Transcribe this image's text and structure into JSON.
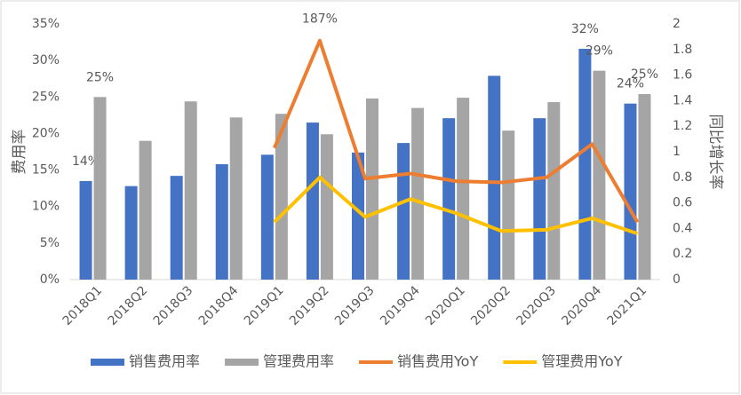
{
  "chart_data": {
    "type": "bar-line",
    "y_label": "费用率",
    "y2_label": "同比增长率",
    "categories": [
      "2018Q1",
      "2018Q2",
      "2018Q3",
      "2018Q4",
      "2019Q1",
      "2019Q2",
      "2019Q3",
      "2019Q4",
      "2020Q1",
      "2020Q2",
      "2020Q3",
      "2020Q4",
      "2021Q1"
    ],
    "series": [
      {
        "name": "销售费用率",
        "kind": "bar",
        "color": "#4472c4",
        "values": [
          13.5,
          12.8,
          14.2,
          15.8,
          17.1,
          21.5,
          17.4,
          18.7,
          22.1,
          27.9,
          22.1,
          31.6,
          24.1
        ],
        "value_labels": [
          "14%",
          null,
          null,
          null,
          null,
          null,
          null,
          null,
          null,
          null,
          null,
          "32%",
          "24%"
        ]
      },
      {
        "name": "管理费用率",
        "kind": "bar",
        "color": "#a5a5a5",
        "values": [
          25.0,
          19.0,
          24.4,
          22.2,
          22.7,
          19.9,
          24.8,
          23.5,
          24.9,
          20.4,
          24.3,
          28.6,
          25.4
        ],
        "value_labels": [
          "25%",
          null,
          null,
          null,
          null,
          null,
          null,
          null,
          null,
          null,
          null,
          "29%",
          "25%"
        ]
      },
      {
        "name": "销售费用YoY",
        "kind": "line",
        "axis": "y2",
        "color": "#ed7d31",
        "values": [
          null,
          null,
          null,
          null,
          1.03,
          1.87,
          0.79,
          0.83,
          0.77,
          0.76,
          0.8,
          1.06,
          0.45
        ],
        "value_labels": [
          null,
          null,
          null,
          null,
          null,
          "187%",
          null,
          null,
          null,
          null,
          null,
          null,
          null
        ]
      },
      {
        "name": "管理费用YoY",
        "kind": "line",
        "axis": "y2",
        "color": "#ffc000",
        "values": [
          null,
          null,
          null,
          null,
          0.45,
          0.8,
          0.49,
          0.63,
          0.52,
          0.38,
          0.39,
          0.48,
          0.36
        ]
      }
    ],
    "ylim": [
      0,
      35
    ],
    "yticks": [
      {
        "value": 0,
        "label": "0%"
      },
      {
        "value": 5,
        "label": "5%"
      },
      {
        "value": 10,
        "label": "10%"
      },
      {
        "value": 15,
        "label": "15%"
      },
      {
        "value": 20,
        "label": "20%"
      },
      {
        "value": 25,
        "label": "25%"
      },
      {
        "value": 30,
        "label": "30%"
      },
      {
        "value": 35,
        "label": "35%"
      }
    ],
    "y2lim": [
      0,
      2
    ],
    "y2ticks": [
      0,
      0.2,
      0.4,
      0.6,
      0.8,
      1,
      1.2,
      1.4,
      1.6,
      1.8,
      2
    ],
    "legend": "bottom"
  }
}
